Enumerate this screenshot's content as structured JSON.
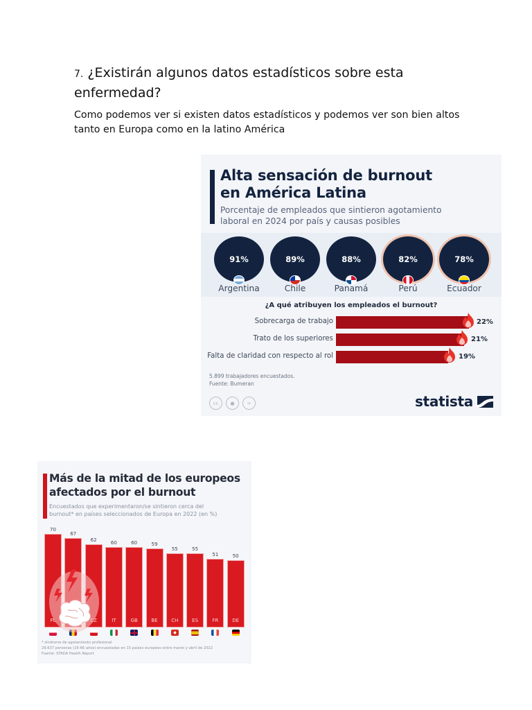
{
  "document": {
    "heading_number": "7.",
    "heading_text": "¿Existirán algunos datos estadísticos sobre esta enfermedad?",
    "paragraph": "Como podemos ver si existen datos estadísticos y podemos ver son bien altos tanto en Europa como en la latino América"
  },
  "latam": {
    "title_line1": "Alta sensación de burnout",
    "title_line2": "en América Latina",
    "subtitle_line1": "Porcentaje de empleados que sintieron agotamiento",
    "subtitle_line2": "laboral en 2024 por país y causas posibles",
    "countries": [
      {
        "name": "Argentina",
        "value": "91%"
      },
      {
        "name": "Chile",
        "value": "89%"
      },
      {
        "name": "Panamá",
        "value": "88%"
      },
      {
        "name": "Perú",
        "value": "82%"
      },
      {
        "name": "Ecuador",
        "value": "78%"
      }
    ],
    "question": "¿A qué atribuyen los empleados el burnout?",
    "causes": [
      {
        "label": "Sobrecarga de trabajo",
        "value": "22%"
      },
      {
        "label": "Trato de los superiores",
        "value": "21%"
      },
      {
        "label": "Falta de claridad con respecto al rol",
        "value": "19%"
      }
    ],
    "note": "5.899 trabajadores encuestados.",
    "source": "Fuente: Bumeran",
    "license_icons": [
      "cc",
      "by",
      "nd"
    ],
    "brand": "statista"
  },
  "europe": {
    "title_line1": "Más de la mitad de los europeos",
    "title_line2": "afectados por el burnout",
    "subtitle_line1": "Encuestados que experimentaron/se sintieron cerca del",
    "subtitle_line2": "burnout* en países seleccionados de Europa en 2022 (en %)",
    "footnote1": "* síndrome de agotamiento profesional",
    "footnote2": "29.637 personas (16-66 años) encuestadas en 15 países europeos entre marzo y abril de 2022",
    "footnote3": "Fuente: STADA Health Report"
  },
  "chart_data": [
    {
      "type": "bar",
      "title": "Alta sensación de burnout en América Latina",
      "subtitle": "Porcentaje de empleados que sintieron agotamiento laboral en 2024 por país y causas posibles",
      "categories": [
        "Argentina",
        "Chile",
        "Panamá",
        "Perú",
        "Ecuador"
      ],
      "values": [
        91,
        89,
        88,
        82,
        78
      ],
      "unit": "%",
      "sub_chart": {
        "type": "bar",
        "orientation": "horizontal",
        "title": "¿A qué atribuyen los empleados el burnout?",
        "categories": [
          "Sobrecarga de trabajo",
          "Trato de los superiores",
          "Falta de claridad con respecto al rol"
        ],
        "values": [
          22,
          21,
          19
        ],
        "unit": "%"
      },
      "notes": [
        "5.899 trabajadores encuestados.",
        "Fuente: Bumeran"
      ]
    },
    {
      "type": "bar",
      "title": "Más de la mitad de los europeos afectados por el burnout",
      "subtitle": "Encuestados que experimentaron/se sintieron cerca del burnout* en países seleccionados de Europa en 2022 (en %)",
      "categories": [
        "PL",
        "RO",
        "CZ",
        "IT",
        "GB",
        "BE",
        "CH",
        "ES",
        "FR",
        "DE"
      ],
      "values": [
        70,
        67,
        62,
        60,
        60,
        59,
        55,
        55,
        51,
        50
      ],
      "xlabel": "",
      "ylabel": "%",
      "ylim": [
        0,
        70
      ],
      "grid": false,
      "notes": [
        "* síndrome de agotamiento profesional",
        "29.637 personas (16-66 años) encuestadas en 15 países europeos entre marzo y abril de 2022",
        "Fuente: STADA Health Report"
      ]
    }
  ]
}
